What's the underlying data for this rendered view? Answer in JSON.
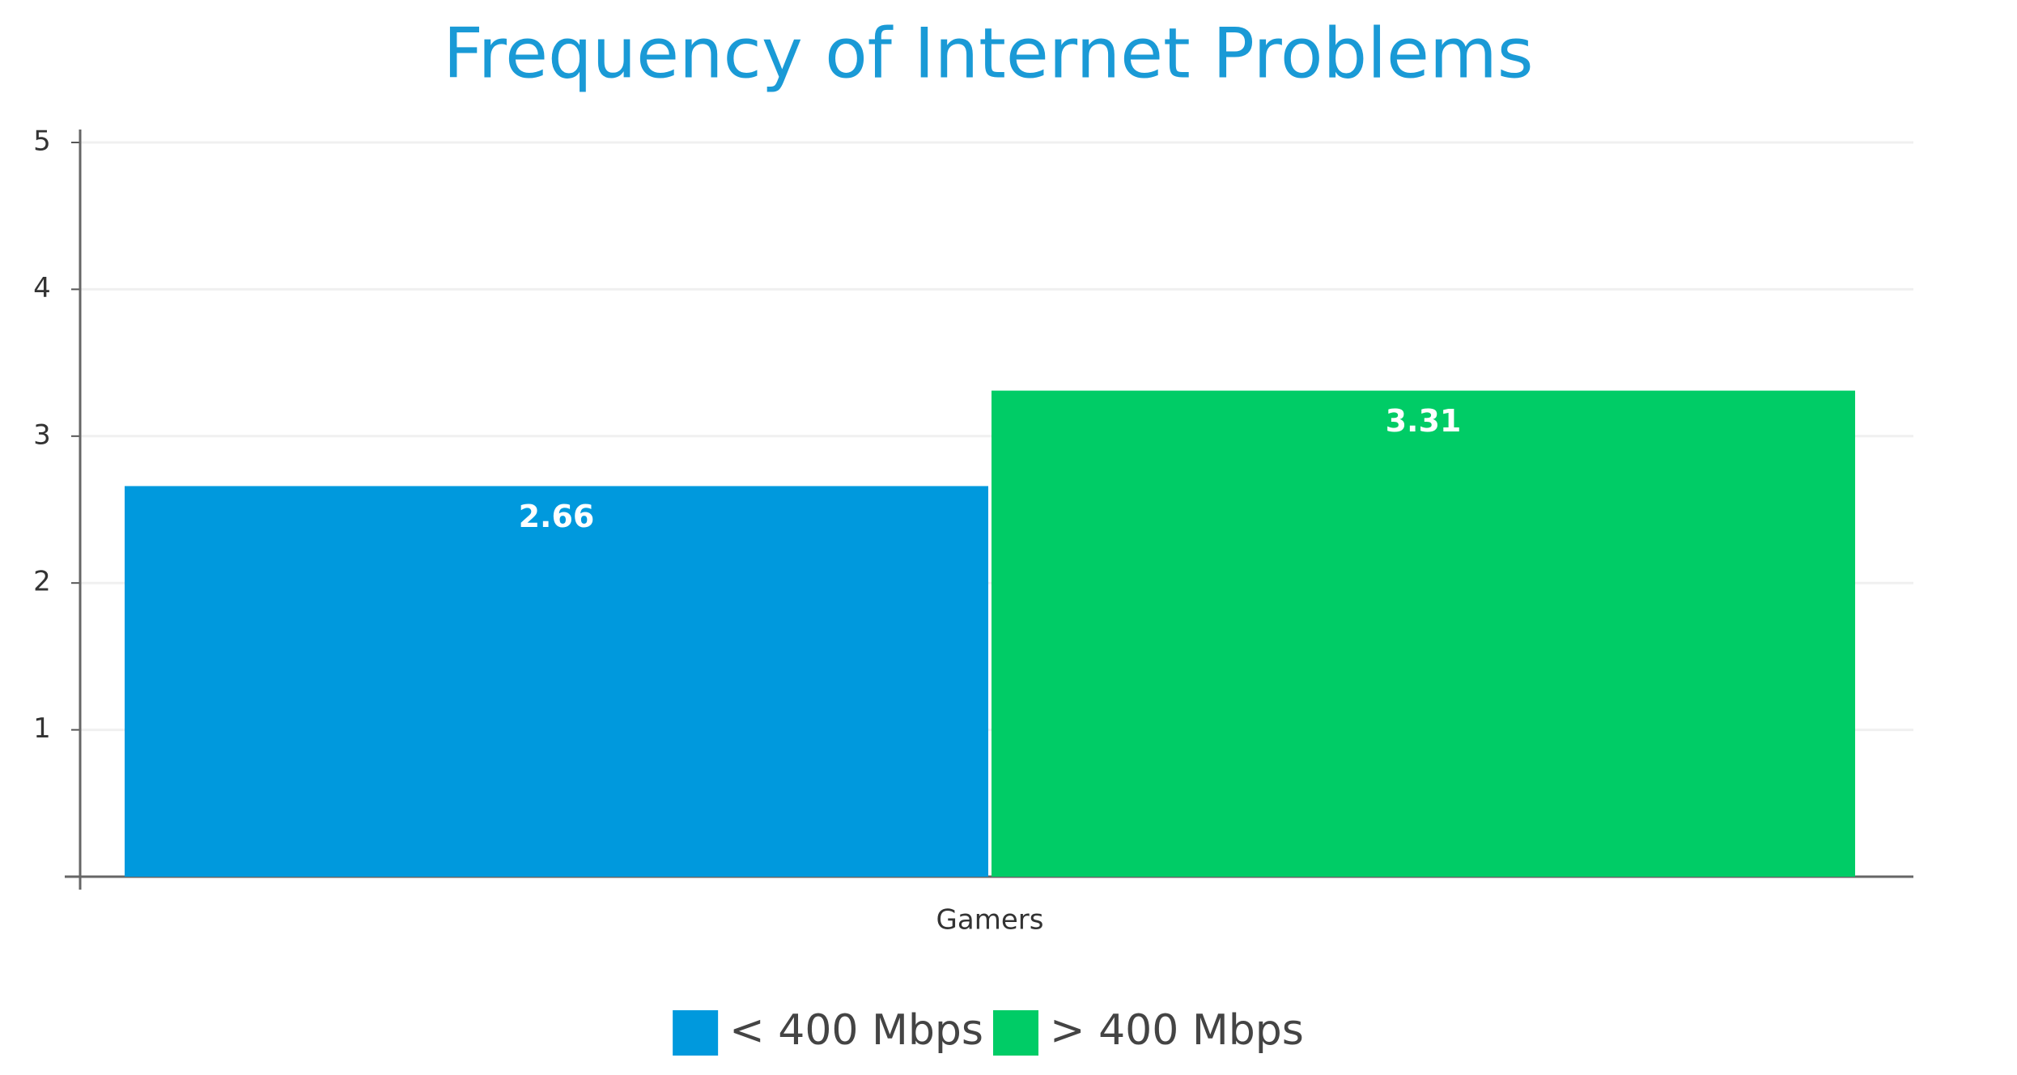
{
  "chart_data": {
    "type": "bar",
    "title": "Frequency of Internet Problems",
    "categories": [
      "Gamers"
    ],
    "series": [
      {
        "name": "< 400 Mbps",
        "color": "#0099dd",
        "values": [
          2.66
        ]
      },
      {
        "name": "> 400 Mbps",
        "color": "#00cc66",
        "values": [
          3.31
        ]
      }
    ],
    "ylim": [
      0,
      5
    ],
    "yticks": [
      1,
      2,
      3,
      4,
      5
    ],
    "grid": true,
    "legend": "bottom"
  }
}
